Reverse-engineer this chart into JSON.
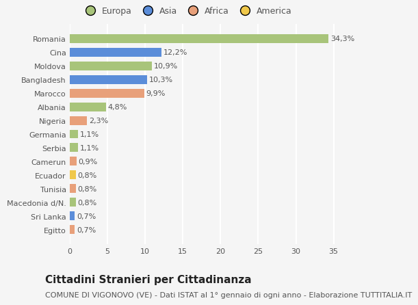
{
  "categories": [
    "Egitto",
    "Sri Lanka",
    "Macedonia d/N.",
    "Tunisia",
    "Ecuador",
    "Camerun",
    "Serbia",
    "Germania",
    "Nigeria",
    "Albania",
    "Marocco",
    "Bangladesh",
    "Moldova",
    "Cina",
    "Romania"
  ],
  "values": [
    0.7,
    0.7,
    0.8,
    0.8,
    0.8,
    0.9,
    1.1,
    1.1,
    2.3,
    4.8,
    9.9,
    10.3,
    10.9,
    12.2,
    34.3
  ],
  "labels": [
    "0,7%",
    "0,7%",
    "0,8%",
    "0,8%",
    "0,8%",
    "0,9%",
    "1,1%",
    "1,1%",
    "2,3%",
    "4,8%",
    "9,9%",
    "10,3%",
    "10,9%",
    "12,2%",
    "34,3%"
  ],
  "colors": [
    "#e8a07a",
    "#5b8dd9",
    "#a8c47a",
    "#e8a07a",
    "#f0c84a",
    "#e8a07a",
    "#a8c47a",
    "#a8c47a",
    "#e8a07a",
    "#a8c47a",
    "#e8a07a",
    "#5b8dd9",
    "#a8c47a",
    "#5b8dd9",
    "#a8c47a"
  ],
  "legend_labels": [
    "Europa",
    "Asia",
    "Africa",
    "America"
  ],
  "legend_colors": [
    "#a8c47a",
    "#5b8dd9",
    "#e8a07a",
    "#f0c84a"
  ],
  "xlim": [
    0,
    37
  ],
  "xticks": [
    0,
    5,
    10,
    15,
    20,
    25,
    30,
    35
  ],
  "title": "Cittadini Stranieri per Cittadinanza",
  "subtitle": "COMUNE DI VIGONOVO (VE) - Dati ISTAT al 1° gennaio di ogni anno - Elaborazione TUTTITALIA.IT",
  "background_color": "#f5f5f5",
  "plot_bg_color": "#f5f5f5",
  "grid_color": "#ffffff",
  "bar_height": 0.65,
  "tick_fontsize": 8,
  "label_fontsize": 8,
  "legend_fontsize": 9,
  "title_fontsize": 11,
  "subtitle_fontsize": 8
}
